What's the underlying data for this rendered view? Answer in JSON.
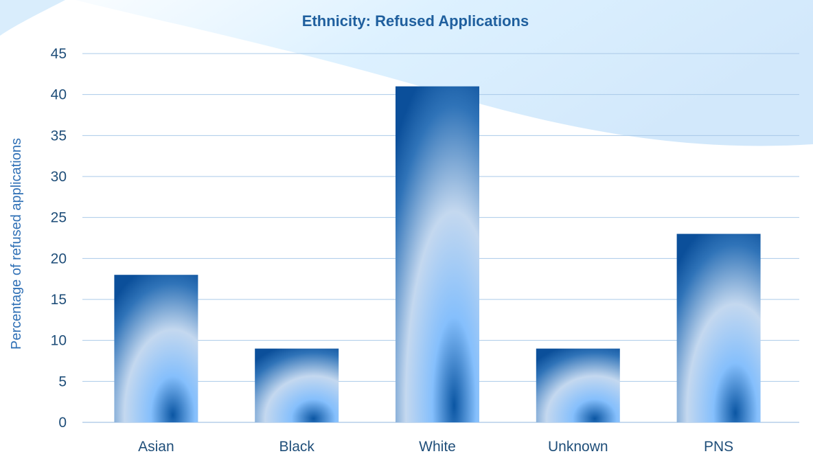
{
  "chart_data": {
    "type": "bar",
    "title": "Ethnicity: Refused Applications",
    "xlabel": "",
    "ylabel": "Percentage of refused applications",
    "categories": [
      "Asian",
      "Black",
      "White",
      "Unknown",
      "PNS"
    ],
    "values": [
      18,
      9,
      41,
      9,
      23
    ],
    "ylim": [
      0,
      45
    ],
    "yticks": [
      "0",
      "5",
      "10",
      "15",
      "20",
      "25",
      "30",
      "35",
      "40",
      "45"
    ],
    "grid": true,
    "legend": "none",
    "colors": {
      "bar_dark": "#0b4f9a",
      "bar_light": "#c4d8ef",
      "bar_mid": "#85bffc",
      "grid": "#a9c9e8",
      "text": "#1f4e79",
      "title": "#1f5f9e",
      "background_wave": "#d9efff"
    }
  }
}
